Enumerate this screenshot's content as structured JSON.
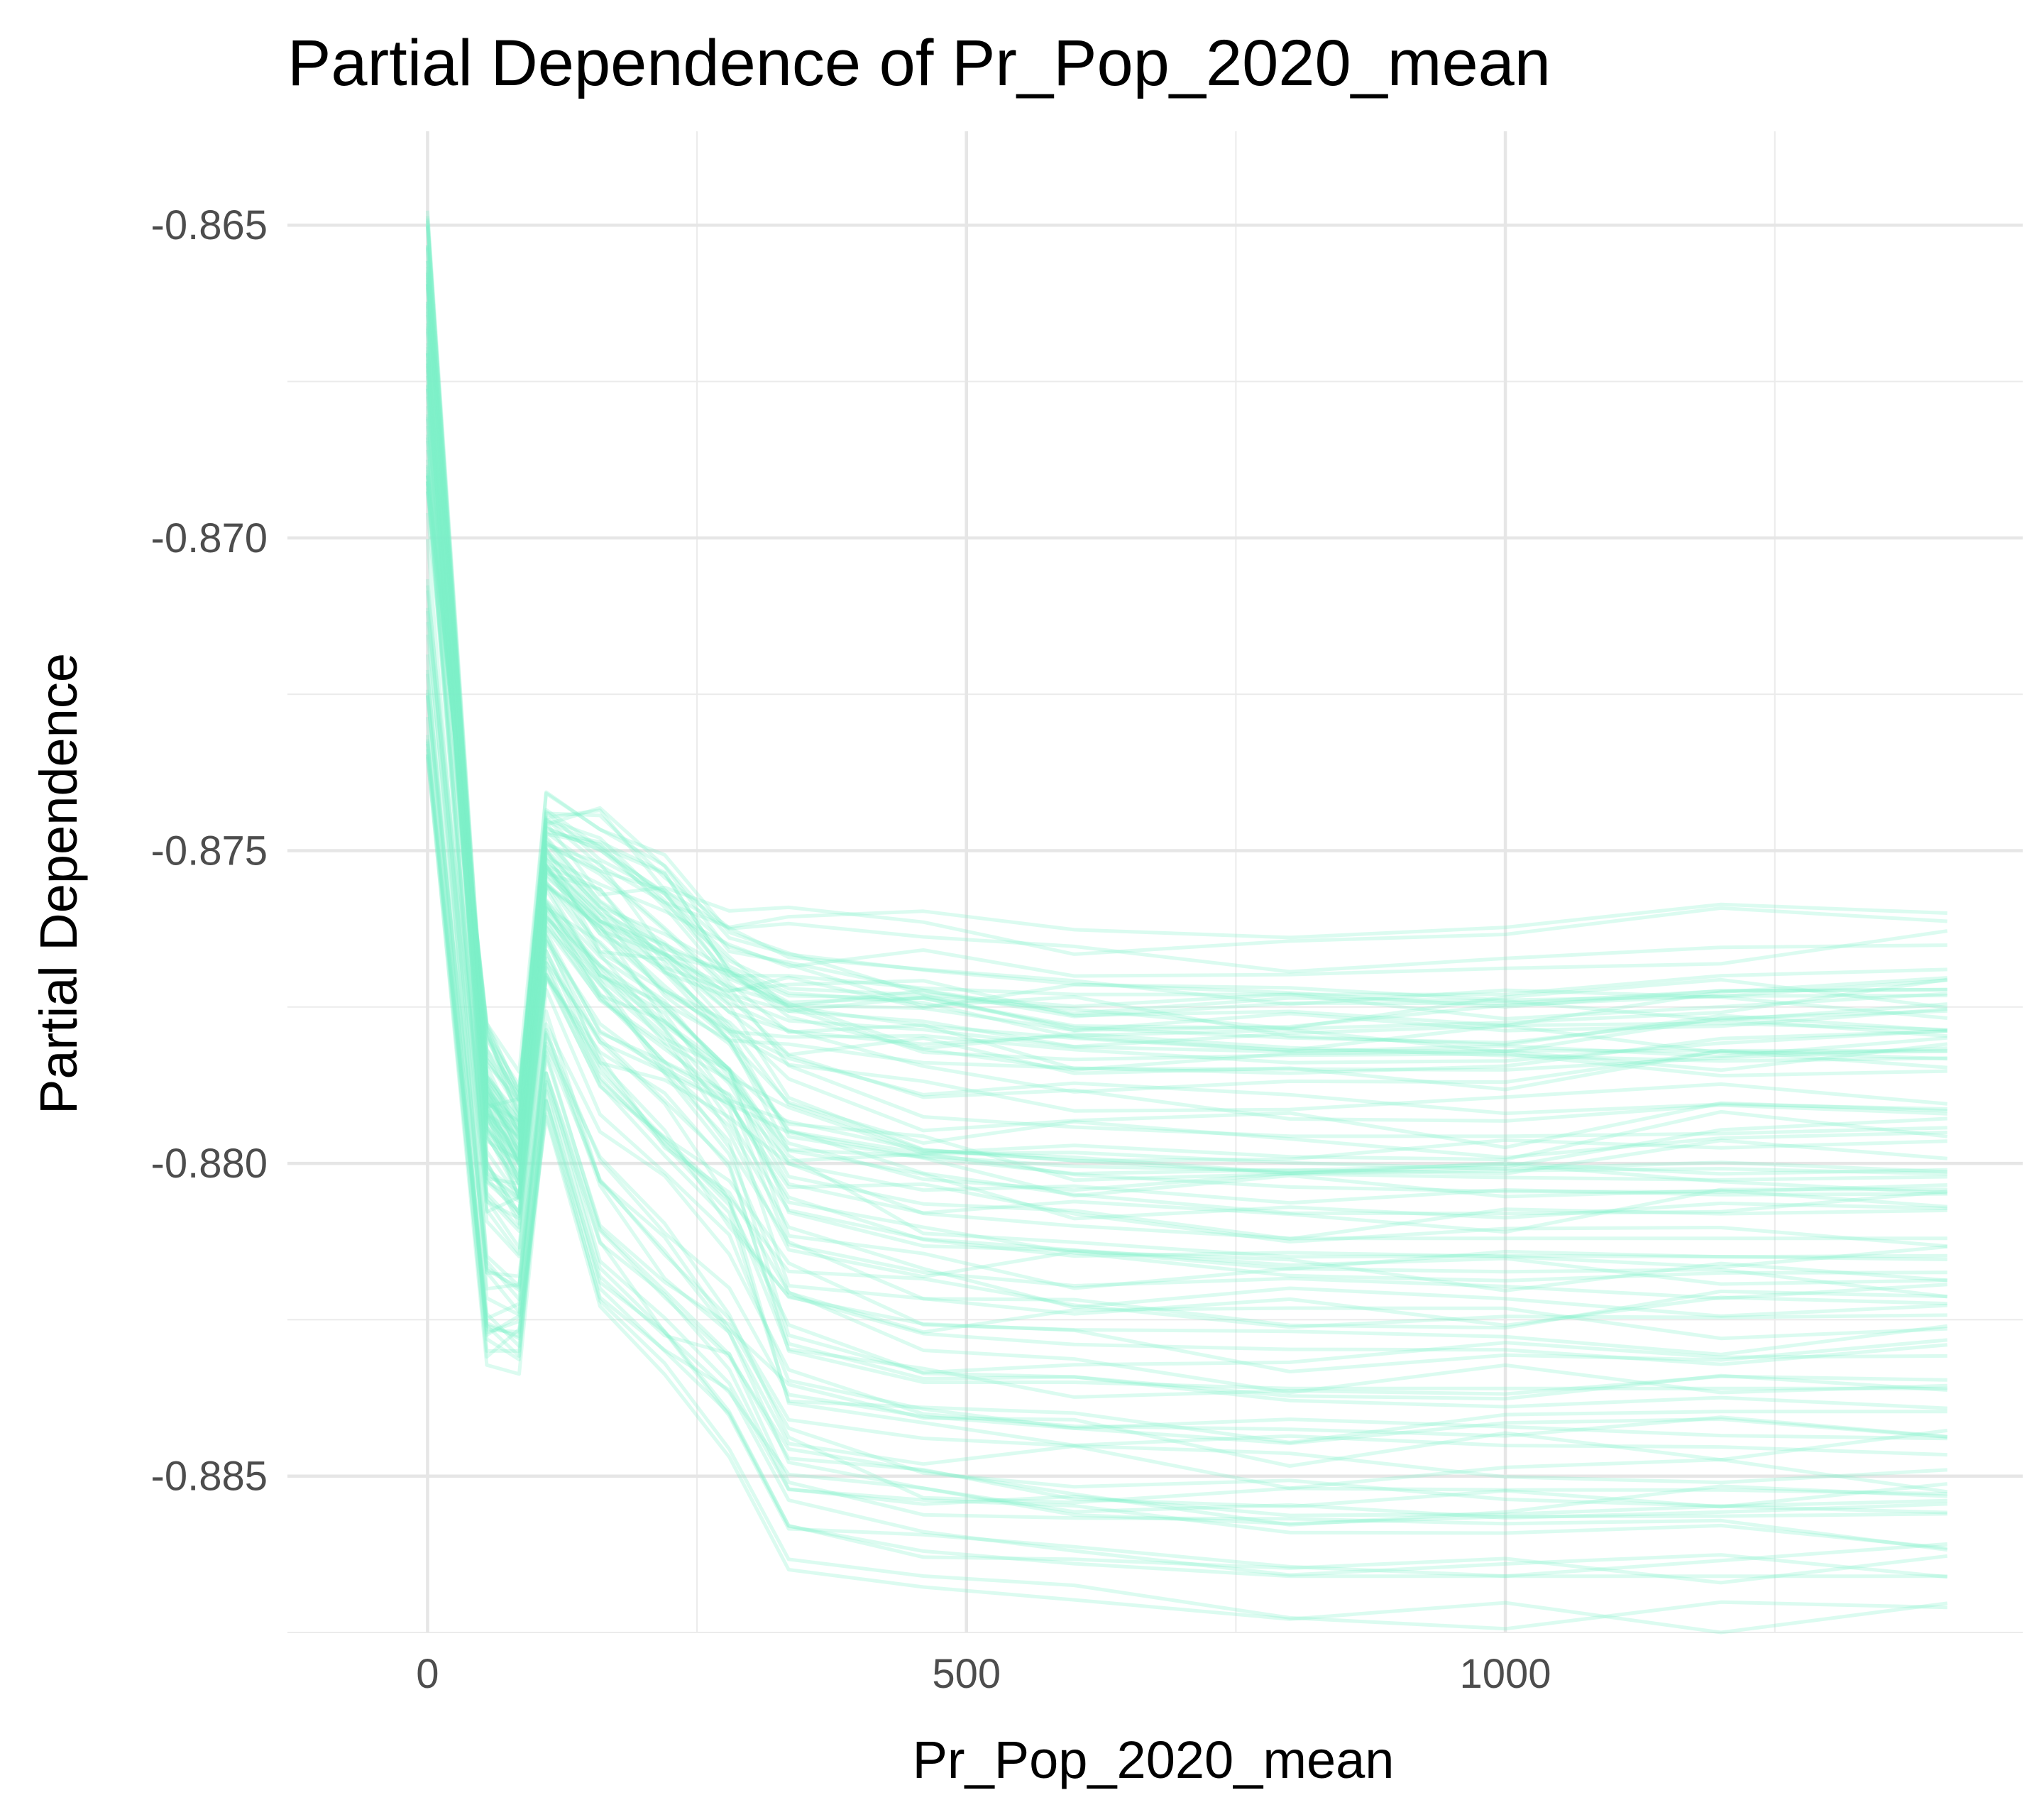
{
  "chart_data": {
    "type": "line",
    "title": "Partial Dependence of Pr_Pop_2020_mean",
    "xlabel": "Pr_Pop_2020_mean",
    "ylabel": "Partial Dependence",
    "xlim": [
      -130,
      1480
    ],
    "ylim": [
      -0.8875,
      -0.8635
    ],
    "x_ticks": [
      0,
      500,
      1000
    ],
    "x_tick_labels": [
      "0",
      "500",
      "1000"
    ],
    "y_ticks": [
      -0.865,
      -0.87,
      -0.875,
      -0.88,
      -0.885
    ],
    "y_tick_labels": [
      "-0.865",
      "-0.870",
      "-0.875",
      "-0.880",
      "-0.885"
    ],
    "grid": true,
    "line_color": "#7FEFC9",
    "line_opacity": 0.28,
    "n_lines": 100,
    "x": [
      0,
      55,
      85,
      110,
      160,
      220,
      280,
      335,
      460,
      600,
      800,
      1000,
      1200,
      1410
    ],
    "representative_lines": [
      [
        -0.865,
        -0.879,
        -0.88,
        -0.8755,
        -0.8765,
        -0.8775,
        -0.8785,
        -0.88,
        -0.8808,
        -0.881,
        -0.8812,
        -0.8812,
        -0.8812,
        -0.8812
      ],
      [
        -0.8672,
        -0.88,
        -0.8808,
        -0.8768,
        -0.878,
        -0.879,
        -0.88,
        -0.883,
        -0.8835,
        -0.8835,
        -0.8836,
        -0.8836,
        -0.8836,
        -0.8836
      ],
      [
        -0.869,
        -0.878,
        -0.879,
        -0.8745,
        -0.8748,
        -0.8758,
        -0.877,
        -0.8775,
        -0.8778,
        -0.878,
        -0.8782,
        -0.8782,
        -0.8782,
        -0.8782
      ],
      [
        -0.8735,
        -0.883,
        -0.883,
        -0.879,
        -0.882,
        -0.883,
        -0.884,
        -0.8858,
        -0.8862,
        -0.8864,
        -0.8866,
        -0.8866,
        -0.8866,
        -0.8866
      ],
      [
        -0.866,
        -0.879,
        -0.8795,
        -0.875,
        -0.876,
        -0.8765,
        -0.877,
        -0.877,
        -0.8772,
        -0.8773,
        -0.8773,
        -0.8773,
        -0.877,
        -0.8769
      ]
    ]
  }
}
